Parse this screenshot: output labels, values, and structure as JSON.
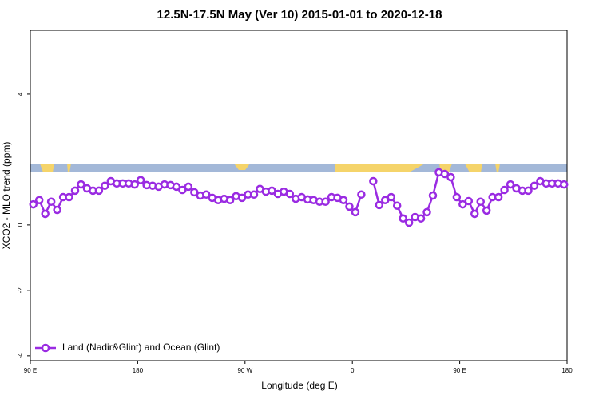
{
  "chart_data": {
    "type": "line",
    "title": "12.5N-17.5N May (Ver 10)   2015-01-01 to 2020-12-18",
    "xlabel": "Longitude (deg E)",
    "ylabel": "XCO2 - MLO trend (ppm)",
    "xlim": [
      90,
      540
    ],
    "ylim": [
      -4.15,
      5.95
    ],
    "xticks": [
      {
        "value": 90,
        "label": "90 E"
      },
      180,
      {
        "value": 270,
        "label": "90 W"
      },
      {
        "value": 360,
        "label": "0"
      },
      {
        "value": 450,
        "label": "90 E"
      },
      {
        "value": 540,
        "label": "180"
      }
    ],
    "yticks": [
      -4,
      -2,
      0,
      4
    ],
    "legend": "bottom-left",
    "x": [
      92.5,
      97.5,
      102.5,
      107.5,
      112.5,
      117.5,
      122.5,
      127.5,
      132.5,
      137.5,
      142.5,
      147.5,
      152.5,
      157.5,
      162.5,
      167.5,
      172.5,
      177.5,
      182.5,
      187.5,
      192.5,
      197.5,
      202.5,
      207.5,
      212.5,
      217.5,
      222.5,
      227.5,
      232.5,
      237.5,
      242.5,
      247.5,
      252.5,
      257.5,
      262.5,
      267.5,
      272.5,
      277.5,
      282.5,
      287.5,
      292.5,
      297.5,
      302.5,
      307.5,
      312.5,
      317.5,
      322.5,
      327.5,
      332.5,
      337.5,
      342.5,
      347.5,
      352.5,
      357.5,
      362.5,
      367.5,
      372.5,
      377.5,
      382.5,
      387.5,
      392.5,
      397.5,
      402.5,
      407.5,
      412.5,
      417.5,
      422.5,
      427.5,
      432.5,
      437.5,
      442.5,
      447.5,
      452.5,
      457.5,
      462.5,
      467.5,
      472.5,
      477.5,
      482.5,
      487.5,
      492.5,
      497.5,
      502.5,
      507.5,
      512.5,
      517.5,
      522.5,
      527.5,
      532.5,
      537.5
    ],
    "series": [
      {
        "name": "Land (Nadir&Glint) and Ocean (Glint)",
        "color": "#9a2be2",
        "values": [
          0.63,
          0.76,
          0.34,
          0.71,
          0.46,
          0.85,
          0.85,
          1.05,
          1.24,
          1.12,
          1.05,
          1.05,
          1.2,
          1.34,
          1.27,
          1.27,
          1.27,
          1.24,
          1.37,
          1.22,
          1.2,
          1.17,
          1.24,
          1.22,
          1.17,
          1.07,
          1.17,
          1.0,
          0.9,
          0.93,
          0.83,
          0.76,
          0.8,
          0.76,
          0.88,
          0.83,
          0.93,
          0.93,
          1.1,
          1.02,
          1.05,
          0.95,
          1.02,
          0.95,
          0.8,
          0.85,
          0.78,
          0.76,
          0.71,
          0.71,
          0.85,
          0.83,
          0.76,
          0.56,
          0.39,
          0.93,
          null,
          1.34,
          0.61,
          0.76,
          0.85,
          0.59,
          0.2,
          0.07,
          0.24,
          0.2,
          0.39,
          0.9,
          1.61,
          1.56,
          1.46,
          0.85,
          0.63,
          0.73,
          0.34,
          0.71,
          0.44,
          0.85,
          0.85,
          1.07,
          1.24,
          1.12,
          1.05,
          1.05,
          1.2,
          1.34,
          1.27,
          1.27,
          1.27,
          1.24
        ]
      }
    ]
  }
}
